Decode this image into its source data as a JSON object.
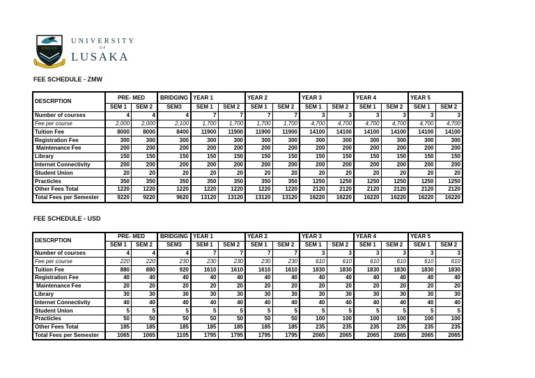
{
  "page": {
    "background": "#ffffff",
    "text_color": "#000000",
    "table_border_color": "#000000"
  },
  "logo": {
    "line1": "UNIVERSITY",
    "line2": "OF",
    "line3": "LUSAKA",
    "crest_banner": "UNILUS",
    "colors": {
      "navy_text": "#1e3a4a",
      "teal": "#2d7f8d",
      "dark": "#0f1c1c",
      "gold": "#e6b82a"
    }
  },
  "tables": [
    {
      "title": "FEE SCHEDULE - ZMW",
      "header_label": "DESCRPTION",
      "groups": [
        {
          "label": "PRE- MED",
          "align": "center",
          "cols": [
            "SEM 1",
            "SEM 2"
          ]
        },
        {
          "label": "BRIDGING",
          "align": "center",
          "cols": [
            "SEM3"
          ]
        },
        {
          "label": "YEAR 1",
          "align": "left",
          "cols": [
            "SEM 1",
            "SEM 2"
          ]
        },
        {
          "label": "YEAR 2",
          "align": "left",
          "cols": [
            "SEM 1",
            "SEM 2"
          ]
        },
        {
          "label": "YEAR 3",
          "align": "left",
          "cols": [
            "SEM 1",
            "SEM 2"
          ]
        },
        {
          "label": "YEAR 4",
          "align": "left",
          "cols": [
            "SEM 1",
            "SEM 2"
          ]
        },
        {
          "label": "YEAR 5",
          "align": "left",
          "cols": [
            "SEM 1",
            "SEM 2"
          ]
        }
      ],
      "rows": [
        {
          "label": "Number of courses",
          "style": "bold",
          "values": [
            "4",
            "4",
            "4",
            "7",
            "7",
            "7",
            "7",
            "3",
            "3",
            "3",
            "3",
            "3",
            "3"
          ]
        },
        {
          "label": "Fee per course",
          "style": "italic",
          "values": [
            "2,000",
            "2,000",
            "2,100",
            "1,700",
            "1,700",
            "1,700",
            "1,700",
            "4,700",
            "4,700",
            "4,700",
            "4,700",
            "4,700",
            "4,700"
          ]
        },
        {
          "label": "Tuition Fee",
          "style": "bold",
          "values": [
            "8000",
            "8000",
            "8400",
            "11900",
            "11900",
            "11900",
            "11900",
            "14100",
            "14100",
            "14100",
            "14100",
            "14100",
            "14100"
          ]
        },
        {
          "label": "Registration Fee",
          "style": "bold",
          "values": [
            "300",
            "300",
            "300",
            "300",
            "300",
            "300",
            "300",
            "300",
            "300",
            "300",
            "300",
            "300",
            "300"
          ]
        },
        {
          "label": "Maintenance Fee",
          "style": "bold",
          "indent": true,
          "values": [
            "200",
            "200",
            "200",
            "200",
            "200",
            "200",
            "200",
            "200",
            "200",
            "200",
            "200",
            "200",
            "200"
          ]
        },
        {
          "label": "Library",
          "style": "bold",
          "values": [
            "150",
            "150",
            "150",
            "150",
            "150",
            "150",
            "150",
            "150",
            "150",
            "150",
            "150",
            "150",
            "150"
          ]
        },
        {
          "label": "Internet Connectivity",
          "style": "bold",
          "values": [
            "200",
            "200",
            "200",
            "200",
            "200",
            "200",
            "200",
            "200",
            "200",
            "200",
            "200",
            "200",
            "200"
          ]
        },
        {
          "label": "Student Union",
          "style": "bold",
          "values": [
            "20",
            "20",
            "20",
            "20",
            "20",
            "20",
            "20",
            "20",
            "20",
            "20",
            "20",
            "20",
            "20"
          ]
        },
        {
          "label": "Practicles",
          "style": "bold",
          "values": [
            "350",
            "350",
            "350",
            "350",
            "350",
            "350",
            "350",
            "1250",
            "1250",
            "1250",
            "1250",
            "1250",
            "1250"
          ]
        },
        {
          "label": "Other Fees Total",
          "style": "bold",
          "values": [
            "1220",
            "1220",
            "1220",
            "1220",
            "1220",
            "1220",
            "1220",
            "2120",
            "2120",
            "2120",
            "2120",
            "2120",
            "2120"
          ]
        },
        {
          "label": "Total Fees per Semester",
          "style": "bold",
          "values": [
            "9220",
            "9220",
            "9620",
            "13120",
            "13120",
            "13120",
            "13120",
            "16220",
            "16220",
            "16220",
            "16220",
            "16220",
            "16220"
          ]
        }
      ]
    },
    {
      "title": "FEE SCHEDULE - USD",
      "header_label": "DESCRPTION",
      "groups": [
        {
          "label": "PRE- MED",
          "align": "center",
          "cols": [
            "SEM 1",
            "SEM 2"
          ]
        },
        {
          "label": "BRIDGING",
          "align": "center",
          "cols": [
            "SEM3"
          ]
        },
        {
          "label": "YEAR 1",
          "align": "left",
          "cols": [
            "SEM 1",
            "SEM 2"
          ]
        },
        {
          "label": "YEAR 2",
          "align": "left",
          "cols": [
            "SEM 1",
            "SEM 2"
          ]
        },
        {
          "label": "YEAR 3",
          "align": "left",
          "cols": [
            "SEM 1",
            "SEM 2"
          ]
        },
        {
          "label": "YEAR 4",
          "align": "left",
          "cols": [
            "SEM 1",
            "SEM 2"
          ]
        },
        {
          "label": "YEAR 5",
          "align": "left",
          "cols": [
            "SEM 1",
            "SEM 2"
          ]
        }
      ],
      "rows": [
        {
          "label": "Number of courses",
          "style": "bold",
          "values": [
            "4",
            "4",
            "4",
            "7",
            "7",
            "7",
            "7",
            "3",
            "3",
            "3",
            "3",
            "3",
            "3"
          ]
        },
        {
          "label": "Fee per course",
          "style": "italic",
          "values": [
            "220",
            "220",
            "230",
            "230",
            "230",
            "230",
            "230",
            "610",
            "610",
            "610",
            "610",
            "610",
            "610"
          ]
        },
        {
          "label": "Tuition Fee",
          "style": "bold",
          "values": [
            "880",
            "880",
            "920",
            "1610",
            "1610",
            "1610",
            "1610",
            "1830",
            "1830",
            "1830",
            "1830",
            "1830",
            "1830"
          ]
        },
        {
          "label": "Registration Fee",
          "style": "bold",
          "values": [
            "40",
            "40",
            "40",
            "40",
            "40",
            "40",
            "40",
            "40",
            "40",
            "40",
            "40",
            "40",
            "40"
          ]
        },
        {
          "label": "Maintenance Fee",
          "style": "bold",
          "indent": true,
          "values": [
            "20",
            "20",
            "20",
            "20",
            "20",
            "20",
            "20",
            "20",
            "20",
            "20",
            "20",
            "20",
            "20"
          ]
        },
        {
          "label": "Library",
          "style": "bold",
          "values": [
            "30",
            "30",
            "30",
            "30",
            "30",
            "30",
            "30",
            "30",
            "30",
            "30",
            "30",
            "30",
            "30"
          ]
        },
        {
          "label": "Internet Connectivity",
          "style": "bold",
          "values": [
            "40",
            "40",
            "40",
            "40",
            "40",
            "40",
            "40",
            "40",
            "40",
            "40",
            "40",
            "40",
            "40"
          ]
        },
        {
          "label": "Student Union",
          "style": "bold",
          "values": [
            "5",
            "5",
            "5",
            "5",
            "5",
            "5",
            "5",
            "5",
            "5",
            "5",
            "5",
            "5",
            "5"
          ]
        },
        {
          "label": "Practicles",
          "style": "bold",
          "values": [
            "50",
            "50",
            "50",
            "50",
            "50",
            "50",
            "50",
            "100",
            "100",
            "100",
            "100",
            "100",
            "100"
          ]
        },
        {
          "label": "Other Fees Total",
          "style": "bold",
          "values": [
            "185",
            "185",
            "185",
            "185",
            "185",
            "185",
            "185",
            "235",
            "235",
            "235",
            "235",
            "235",
            "235"
          ]
        },
        {
          "label": "Total Fees per Semester",
          "style": "bold",
          "values": [
            "1065",
            "1065",
            "1105",
            "1795",
            "1795",
            "1795",
            "1795",
            "2065",
            "2065",
            "2065",
            "2065",
            "2065",
            "2065"
          ]
        }
      ]
    }
  ]
}
